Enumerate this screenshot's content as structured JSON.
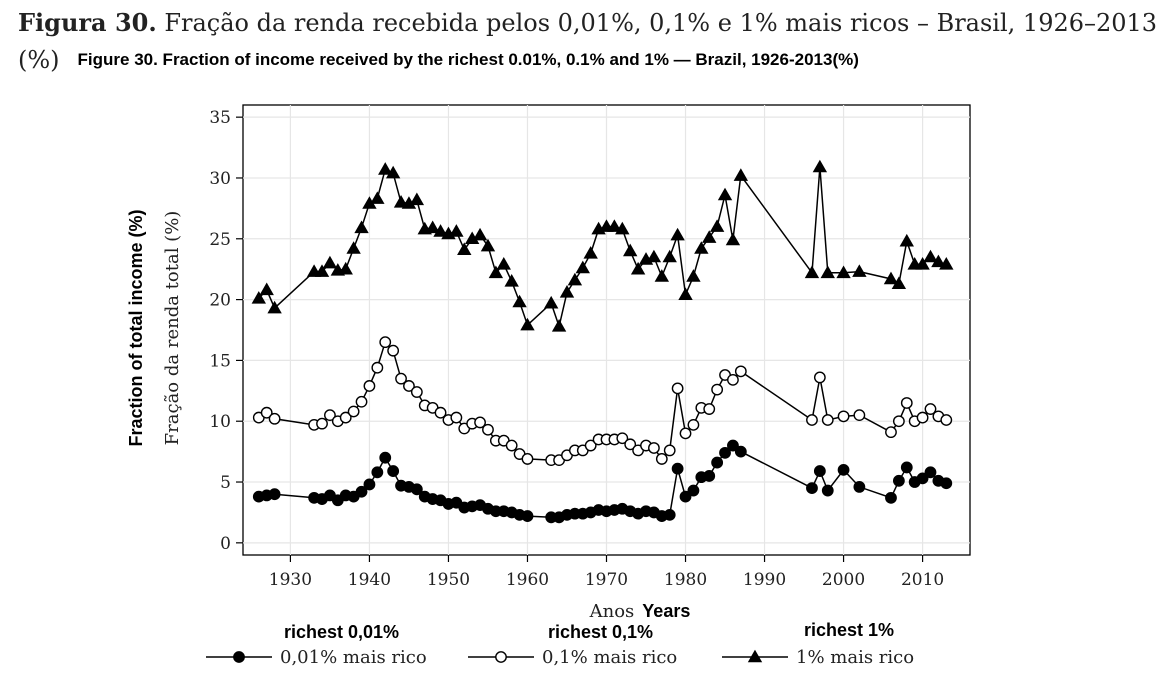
{
  "title": {
    "label": "Figura 30.",
    "text": "Fração da renda recebida pelos 0,01%, 0,1% e 1% mais ricos – Brasil, 1926–2013",
    "unit": "(%)",
    "english": "Figure 30. Fraction of income received by the richest 0.01%, 0.1% and 1% — Brazil, 1926-2013(%)"
  },
  "legend": [
    {
      "en": "richest 0,01%",
      "pt": "0,01% mais rico"
    },
    {
      "en": "richest 0,1%",
      "pt": "0,1% mais rico"
    },
    {
      "en": "richest 1%",
      "pt": "1% mais rico"
    }
  ],
  "chart_data": {
    "type": "line",
    "xlabel_pt": "Anos",
    "xlabel_en": "Years",
    "ylabel_pt": "Fração da renda total (%)",
    "ylabel_en": "Fraction of total income (%)",
    "xlim": [
      1924,
      2016
    ],
    "ylim": [
      -1,
      36
    ],
    "x_ticks": [
      1930,
      1940,
      1950,
      1960,
      1970,
      1980,
      1990,
      2000,
      2010
    ],
    "y_ticks": [
      0,
      5,
      10,
      15,
      20,
      25,
      30,
      35
    ],
    "grid": true,
    "series": [
      {
        "name": "0,01% mais rico",
        "marker": "filled-circle",
        "color": "#000000",
        "x": [
          1926,
          1927,
          1928,
          1933,
          1934,
          1935,
          1936,
          1937,
          1938,
          1939,
          1940,
          1941,
          1942,
          1943,
          1944,
          1945,
          1946,
          1947,
          1948,
          1949,
          1950,
          1951,
          1952,
          1953,
          1954,
          1955,
          1956,
          1957,
          1958,
          1959,
          1960,
          1963,
          1964,
          1965,
          1966,
          1967,
          1968,
          1969,
          1970,
          1971,
          1972,
          1973,
          1974,
          1975,
          1976,
          1977,
          1978,
          1979,
          1980,
          1981,
          1982,
          1983,
          1984,
          1985,
          1986,
          1987,
          1996,
          1997,
          1998,
          2000,
          2002,
          2006,
          2007,
          2008,
          2009,
          2010,
          2011,
          2012,
          2013
        ],
        "y": [
          3.8,
          3.9,
          4.0,
          3.7,
          3.6,
          3.9,
          3.5,
          3.9,
          3.8,
          4.2,
          4.8,
          5.8,
          7.0,
          5.9,
          4.7,
          4.6,
          4.4,
          3.8,
          3.6,
          3.5,
          3.2,
          3.3,
          2.9,
          3.0,
          3.1,
          2.8,
          2.6,
          2.6,
          2.5,
          2.3,
          2.2,
          2.1,
          2.1,
          2.3,
          2.4,
          2.4,
          2.5,
          2.7,
          2.6,
          2.7,
          2.8,
          2.6,
          2.4,
          2.6,
          2.5,
          2.2,
          2.3,
          6.1,
          3.8,
          4.3,
          5.4,
          5.5,
          6.6,
          7.4,
          8.0,
          7.5,
          4.5,
          5.9,
          4.3,
          6.0,
          4.6,
          3.7,
          5.1,
          6.2,
          5.0,
          5.3,
          5.8,
          5.1,
          4.9
        ]
      },
      {
        "name": "0,1% mais rico",
        "marker": "hollow-circle",
        "color": "#000000",
        "x": [
          1926,
          1927,
          1928,
          1933,
          1934,
          1935,
          1936,
          1937,
          1938,
          1939,
          1940,
          1941,
          1942,
          1943,
          1944,
          1945,
          1946,
          1947,
          1948,
          1949,
          1950,
          1951,
          1952,
          1953,
          1954,
          1955,
          1956,
          1957,
          1958,
          1959,
          1960,
          1963,
          1964,
          1965,
          1966,
          1967,
          1968,
          1969,
          1970,
          1971,
          1972,
          1973,
          1974,
          1975,
          1976,
          1977,
          1978,
          1979,
          1980,
          1981,
          1982,
          1983,
          1984,
          1985,
          1986,
          1987,
          1996,
          1997,
          1998,
          2000,
          2002,
          2006,
          2007,
          2008,
          2009,
          2010,
          2011,
          2012,
          2013
        ],
        "y": [
          10.3,
          10.7,
          10.2,
          9.7,
          9.8,
          10.5,
          10.0,
          10.3,
          10.8,
          11.6,
          12.9,
          14.4,
          16.5,
          15.8,
          13.5,
          12.9,
          12.4,
          11.3,
          11.1,
          10.7,
          10.1,
          10.3,
          9.4,
          9.8,
          9.9,
          9.3,
          8.4,
          8.4,
          8.0,
          7.3,
          6.9,
          6.8,
          6.8,
          7.2,
          7.6,
          7.6,
          8.0,
          8.5,
          8.5,
          8.5,
          8.6,
          8.1,
          7.6,
          8.0,
          7.8,
          6.9,
          7.6,
          12.7,
          9.0,
          9.7,
          11.1,
          11.0,
          12.6,
          13.8,
          13.4,
          14.1,
          10.1,
          13.6,
          10.1,
          10.4,
          10.5,
          9.1,
          10.0,
          11.5,
          10.0,
          10.3,
          11.0,
          10.4,
          10.1
        ]
      },
      {
        "name": "1% mais rico",
        "marker": "filled-triangle",
        "color": "#000000",
        "x": [
          1926,
          1927,
          1928,
          1933,
          1934,
          1935,
          1936,
          1937,
          1938,
          1939,
          1940,
          1941,
          1942,
          1943,
          1944,
          1945,
          1946,
          1947,
          1948,
          1949,
          1950,
          1951,
          1952,
          1953,
          1954,
          1955,
          1956,
          1957,
          1958,
          1959,
          1960,
          1963,
          1964,
          1965,
          1966,
          1967,
          1968,
          1969,
          1970,
          1971,
          1972,
          1973,
          1974,
          1975,
          1976,
          1977,
          1978,
          1979,
          1980,
          1981,
          1982,
          1983,
          1984,
          1985,
          1986,
          1987,
          1996,
          1997,
          1998,
          2000,
          2002,
          2006,
          2007,
          2008,
          2009,
          2010,
          2011,
          2012,
          2013
        ],
        "y": [
          20.1,
          20.8,
          19.3,
          22.3,
          22.3,
          23.0,
          22.4,
          22.5,
          24.2,
          25.9,
          27.9,
          28.3,
          30.7,
          30.4,
          28.0,
          27.9,
          28.2,
          25.8,
          25.9,
          25.6,
          25.4,
          25.6,
          24.1,
          25.0,
          25.3,
          24.4,
          22.2,
          22.9,
          21.5,
          19.8,
          17.9,
          19.7,
          17.8,
          20.6,
          21.6,
          22.6,
          23.8,
          25.8,
          26.0,
          26.0,
          25.8,
          24.0,
          22.5,
          23.3,
          23.5,
          21.9,
          23.5,
          25.3,
          20.4,
          21.9,
          24.2,
          25.1,
          26.0,
          28.6,
          24.9,
          30.2,
          22.2,
          30.9,
          22.2,
          22.2,
          22.3,
          21.7,
          21.3,
          24.8,
          22.9,
          22.9,
          23.5,
          23.1,
          22.9
        ]
      }
    ]
  }
}
